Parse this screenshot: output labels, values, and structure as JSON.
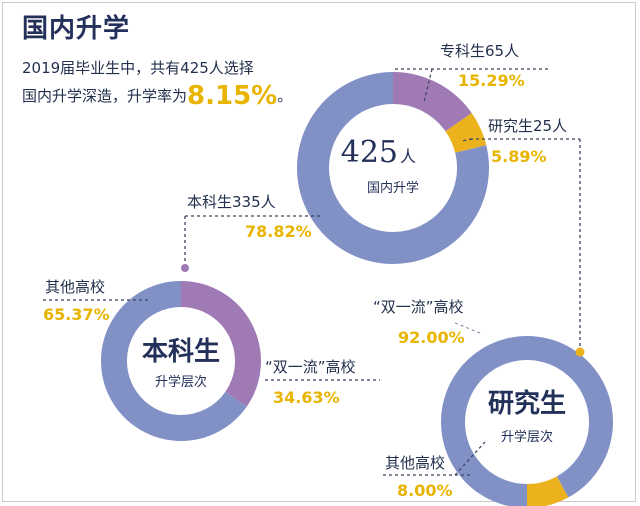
{
  "header": {
    "title": "国内升学",
    "intro_line1": "2019届毕业生中，共有425人选择",
    "intro_line2_prefix": "国内升学深造，升学率为",
    "intro_rate": "8.15%",
    "intro_line2_suffix": "。"
  },
  "colors": {
    "blue": "#8191c6",
    "purple": "#9f7ab5",
    "gold": "#ecb21d",
    "navy": "#23305a",
    "accent_text": "#e8b400"
  },
  "chart_data": [
    {
      "type": "pie",
      "variant": "donut",
      "center_number": "425",
      "center_unit": "人",
      "center_subtitle": "国内升学",
      "slices": [
        {
          "label": "专科生65人",
          "value": 15.29,
          "value_label": "15.29%",
          "color": "#9f7ab5"
        },
        {
          "label": "研究生25人",
          "value": 5.89,
          "value_label": "5.89%",
          "color": "#ecb21d"
        },
        {
          "label": "本科生335人",
          "value": 78.82,
          "value_label": "78.82%",
          "color": "#8191c6"
        }
      ]
    },
    {
      "type": "pie",
      "variant": "donut",
      "center_title": "本科生",
      "center_subtitle": "升学层次",
      "slices": [
        {
          "label": "“双一流”高校",
          "value": 34.63,
          "value_label": "34.63%",
          "color": "#9f7ab5"
        },
        {
          "label": "其他高校",
          "value": 65.37,
          "value_label": "65.37%",
          "color": "#8191c6"
        }
      ]
    },
    {
      "type": "pie",
      "variant": "donut",
      "center_title": "研究生",
      "center_subtitle": "升学层次",
      "slices": [
        {
          "label": "其他高校",
          "value": 8.0,
          "value_label": "8.00%",
          "color": "#ecb21d"
        },
        {
          "label": "“双一流”高校",
          "value": 92.0,
          "value_label": "92.00%",
          "color": "#8191c6"
        }
      ]
    }
  ]
}
